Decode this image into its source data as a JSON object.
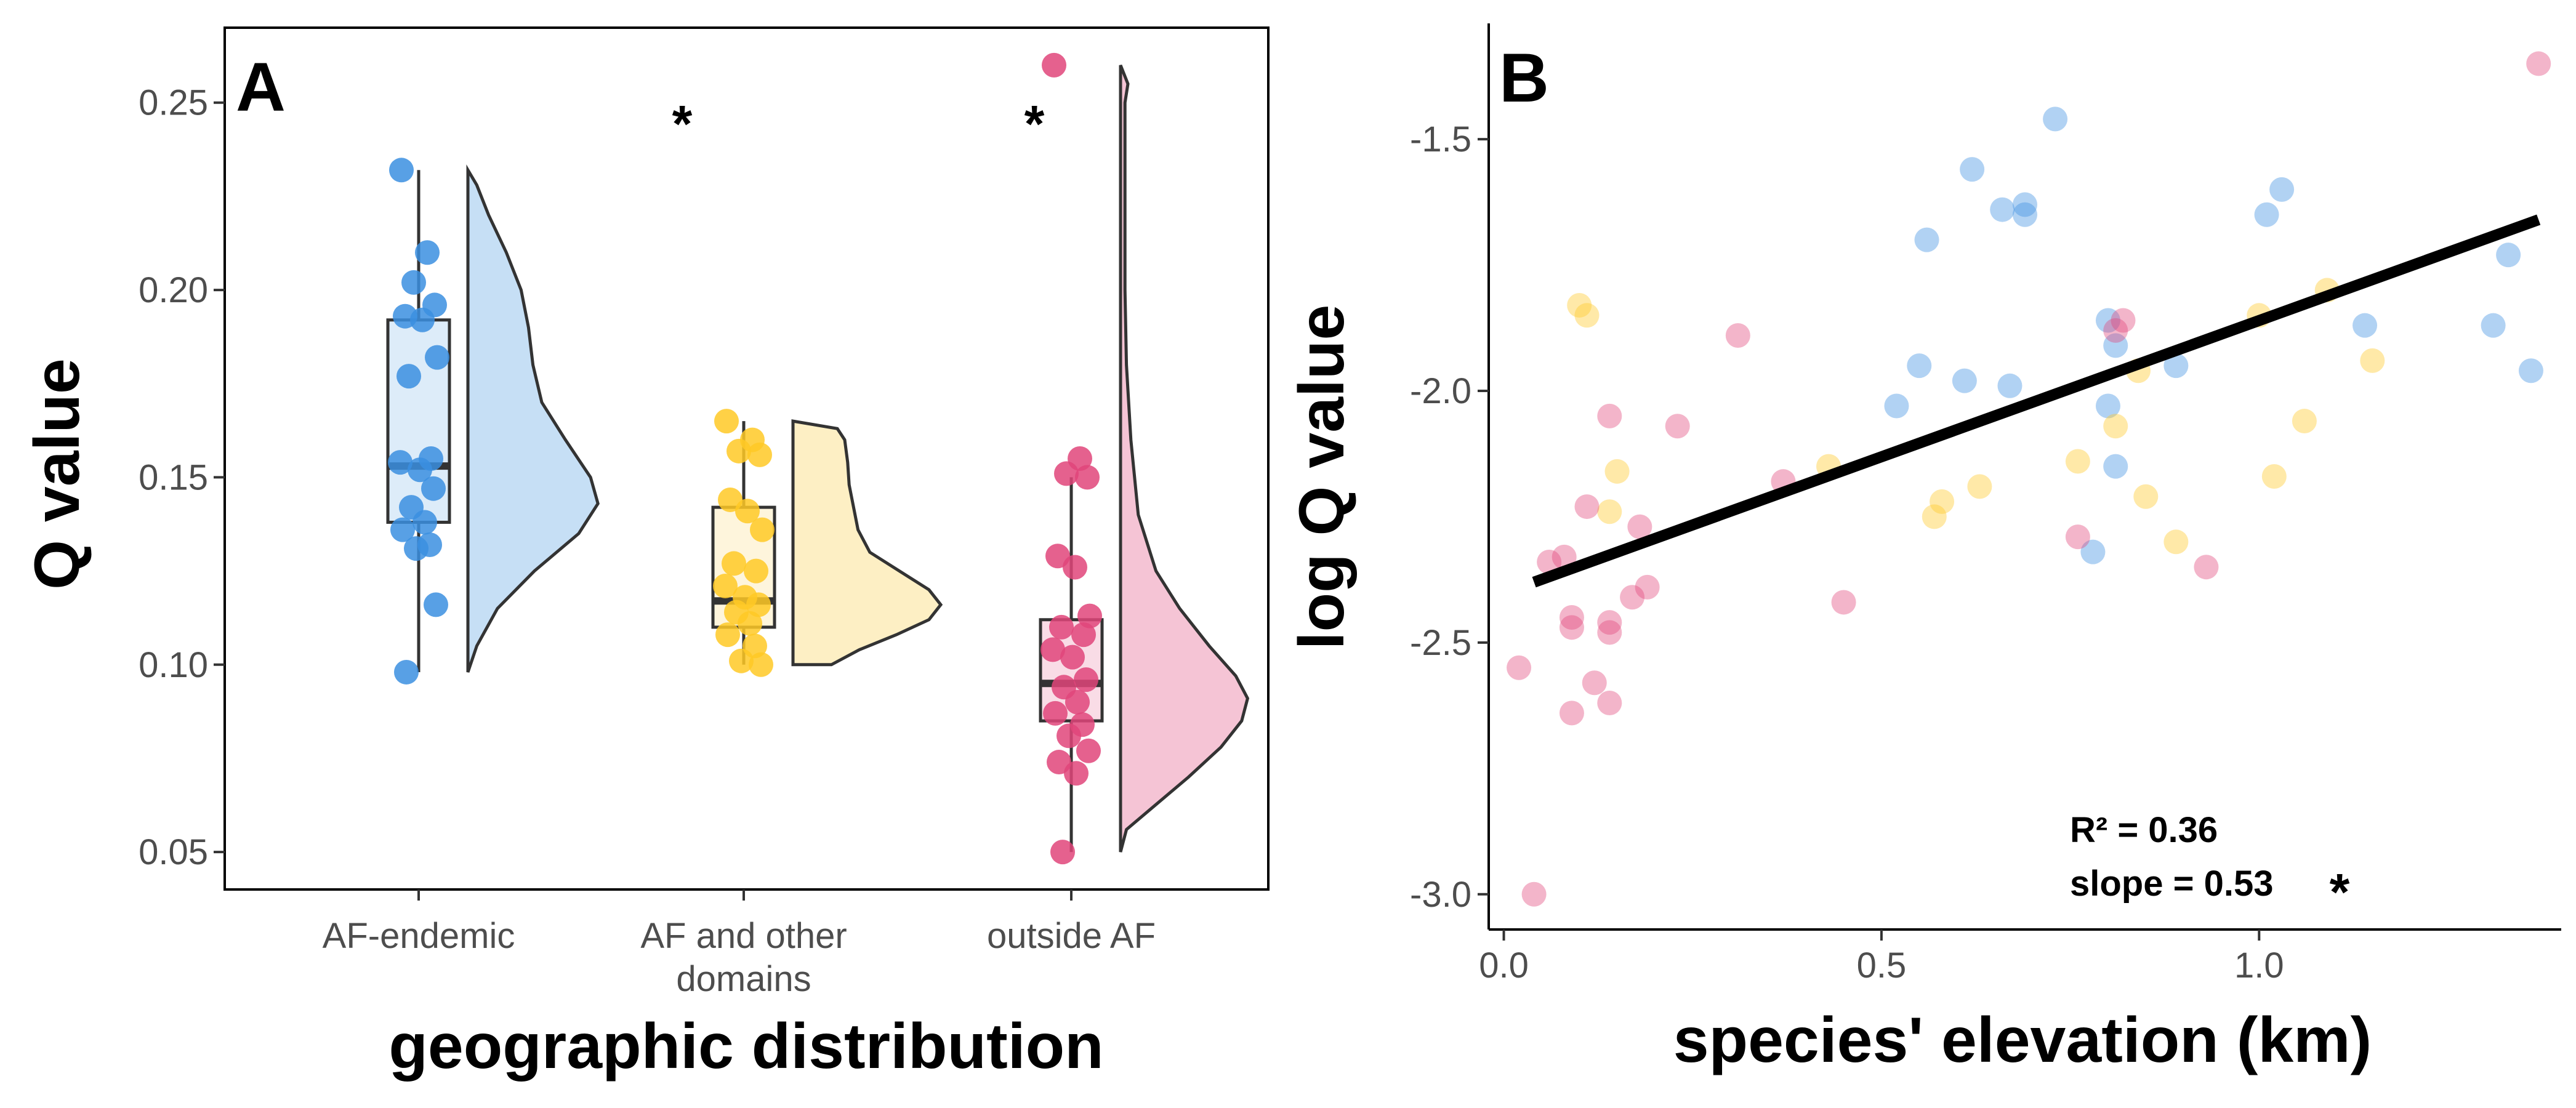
{
  "chart_data": [
    {
      "type": "box",
      "variant": "raincloud (jittered points + boxplot + half violin)",
      "panel_label": "A",
      "xlabel": "geographic distribution",
      "ylabel": "Q value",
      "ylim": [
        0.04,
        0.27
      ],
      "yticks": [
        "0.05",
        "0.10",
        "0.15",
        "0.20",
        "0.25"
      ],
      "grid": false,
      "categories": [
        {
          "label_lines": [
            "AF-endemic"
          ],
          "color": "#3b8fe0",
          "fill": "#c6dff5",
          "significance": "",
          "box": {
            "min": 0.098,
            "q1": 0.138,
            "median": 0.153,
            "q3": 0.192,
            "max": 0.232
          },
          "density": [
            [
              0.098,
              0.0
            ],
            [
              0.105,
              0.06
            ],
            [
              0.115,
              0.2
            ],
            [
              0.125,
              0.45
            ],
            [
              0.135,
              0.75
            ],
            [
              0.143,
              0.88
            ],
            [
              0.15,
              0.83
            ],
            [
              0.16,
              0.66
            ],
            [
              0.17,
              0.5
            ],
            [
              0.18,
              0.44
            ],
            [
              0.19,
              0.41
            ],
            [
              0.2,
              0.36
            ],
            [
              0.21,
              0.26
            ],
            [
              0.22,
              0.14
            ],
            [
              0.228,
              0.06
            ],
            [
              0.232,
              0.0
            ]
          ],
          "points": [
            0.232,
            0.21,
            0.202,
            0.196,
            0.193,
            0.192,
            0.182,
            0.177,
            0.155,
            0.154,
            0.152,
            0.147,
            0.142,
            0.138,
            0.136,
            0.132,
            0.131,
            0.116,
            0.098
          ]
        },
        {
          "label_lines": [
            "AF and other",
            "domains"
          ],
          "color": "#ffc926",
          "fill": "#fdefc4",
          "significance": "*",
          "box": {
            "min": 0.1,
            "q1": 0.11,
            "median": 0.117,
            "q3": 0.142,
            "max": 0.165
          },
          "density": [
            [
              0.1,
              0.26
            ],
            [
              0.104,
              0.45
            ],
            [
              0.108,
              0.7
            ],
            [
              0.112,
              0.92
            ],
            [
              0.116,
              1.0
            ],
            [
              0.12,
              0.92
            ],
            [
              0.125,
              0.72
            ],
            [
              0.13,
              0.52
            ],
            [
              0.136,
              0.44
            ],
            [
              0.142,
              0.41
            ],
            [
              0.148,
              0.38
            ],
            [
              0.154,
              0.37
            ],
            [
              0.16,
              0.35
            ],
            [
              0.163,
              0.3
            ],
            [
              0.165,
              0.0
            ]
          ],
          "points": [
            0.165,
            0.16,
            0.157,
            0.156,
            0.144,
            0.141,
            0.136,
            0.127,
            0.125,
            0.121,
            0.118,
            0.116,
            0.114,
            0.111,
            0.108,
            0.105,
            0.101,
            0.1
          ]
        },
        {
          "label_lines": [
            "outside AF"
          ],
          "color": "#e0457a",
          "fill": "#f5c4d5",
          "significance": "*",
          "box": {
            "min": 0.05,
            "q1": 0.085,
            "median": 0.095,
            "q3": 0.112,
            "max": 0.15
          },
          "density": [
            [
              0.05,
              0.0
            ],
            [
              0.056,
              0.04
            ],
            [
              0.062,
              0.22
            ],
            [
              0.07,
              0.46
            ],
            [
              0.078,
              0.68
            ],
            [
              0.085,
              0.82
            ],
            [
              0.091,
              0.86
            ],
            [
              0.097,
              0.78
            ],
            [
              0.105,
              0.6
            ],
            [
              0.115,
              0.4
            ],
            [
              0.125,
              0.24
            ],
            [
              0.14,
              0.12
            ],
            [
              0.16,
              0.07
            ],
            [
              0.18,
              0.04
            ],
            [
              0.2,
              0.03
            ],
            [
              0.23,
              0.03
            ],
            [
              0.25,
              0.03
            ],
            [
              0.255,
              0.05
            ],
            [
              0.258,
              0.02
            ],
            [
              0.26,
              0.0
            ]
          ],
          "points": [
            0.26,
            0.155,
            0.151,
            0.15,
            0.129,
            0.126,
            0.113,
            0.11,
            0.108,
            0.104,
            0.102,
            0.096,
            0.094,
            0.09,
            0.087,
            0.084,
            0.081,
            0.077,
            0.074,
            0.071,
            0.05
          ]
        }
      ]
    },
    {
      "type": "scatter",
      "panel_label": "B",
      "xlabel": "species' elevation (km)",
      "ylabel": "log Q value",
      "xlim": [
        -0.02,
        1.4
      ],
      "ylim": [
        -3.07,
        -1.27
      ],
      "xticks": [
        "0.0",
        "0.5",
        "1.0"
      ],
      "yticks": [
        "-3.0",
        "-2.5",
        "-2.0",
        "-1.5"
      ],
      "grid": false,
      "point_alpha": 0.4,
      "series": [
        {
          "color": "#3b8fe0",
          "points": [
            [
              0.73,
              -1.46
            ],
            [
              0.62,
              -1.56
            ],
            [
              0.66,
              -1.64
            ],
            [
              0.69,
              -1.63
            ],
            [
              0.69,
              -1.65
            ],
            [
              0.56,
              -1.7
            ],
            [
              1.03,
              -1.6
            ],
            [
              1.01,
              -1.65
            ],
            [
              1.33,
              -1.73
            ],
            [
              0.8,
              -1.86
            ],
            [
              0.81,
              -1.91
            ],
            [
              0.89,
              -1.95
            ],
            [
              0.55,
              -1.95
            ],
            [
              0.61,
              -1.98
            ],
            [
              0.67,
              -1.99
            ],
            [
              0.52,
              -2.03
            ],
            [
              0.8,
              -2.03
            ],
            [
              1.14,
              -1.87
            ],
            [
              1.31,
              -1.87
            ],
            [
              1.36,
              -1.96
            ],
            [
              0.81,
              -2.15
            ],
            [
              0.78,
              -2.32
            ]
          ]
        },
        {
          "color": "#ffc926",
          "points": [
            [
              0.1,
              -1.83
            ],
            [
              0.11,
              -1.85
            ],
            [
              1.0,
              -1.85
            ],
            [
              1.09,
              -1.8
            ],
            [
              1.15,
              -1.94
            ],
            [
              0.84,
              -1.96
            ],
            [
              0.81,
              -2.07
            ],
            [
              1.06,
              -2.06
            ],
            [
              0.15,
              -2.16
            ],
            [
              0.14,
              -2.24
            ],
            [
              0.43,
              -2.15
            ],
            [
              0.76,
              -2.14
            ],
            [
              1.02,
              -2.17
            ],
            [
              0.58,
              -2.22
            ],
            [
              0.57,
              -2.25
            ],
            [
              0.85,
              -2.21
            ],
            [
              0.89,
              -2.3
            ],
            [
              0.63,
              -2.19
            ]
          ]
        },
        {
          "color": "#e0457a",
          "points": [
            [
              1.37,
              -1.35
            ],
            [
              0.31,
              -1.89
            ],
            [
              0.82,
              -1.86
            ],
            [
              0.81,
              -1.88
            ],
            [
              0.14,
              -2.05
            ],
            [
              0.23,
              -2.07
            ],
            [
              0.37,
              -2.18
            ],
            [
              0.11,
              -2.23
            ],
            [
              0.18,
              -2.27
            ],
            [
              0.76,
              -2.29
            ],
            [
              0.93,
              -2.35
            ],
            [
              0.06,
              -2.34
            ],
            [
              0.08,
              -2.33
            ],
            [
              0.19,
              -2.39
            ],
            [
              0.17,
              -2.41
            ],
            [
              0.45,
              -2.42
            ],
            [
              0.09,
              -2.45
            ],
            [
              0.09,
              -2.47
            ],
            [
              0.14,
              -2.46
            ],
            [
              0.14,
              -2.48
            ],
            [
              0.02,
              -2.55
            ],
            [
              0.12,
              -2.58
            ],
            [
              0.14,
              -2.62
            ],
            [
              0.09,
              -2.64
            ],
            [
              0.04,
              -3.0
            ]
          ]
        }
      ],
      "regression": {
        "x": [
          0.04,
          1.37
        ],
        "y": [
          -2.38,
          -1.66
        ]
      },
      "annotations": {
        "r2_label": "R² = 0.36",
        "slope_label": "slope = 0.53",
        "significance": "*"
      }
    }
  ]
}
